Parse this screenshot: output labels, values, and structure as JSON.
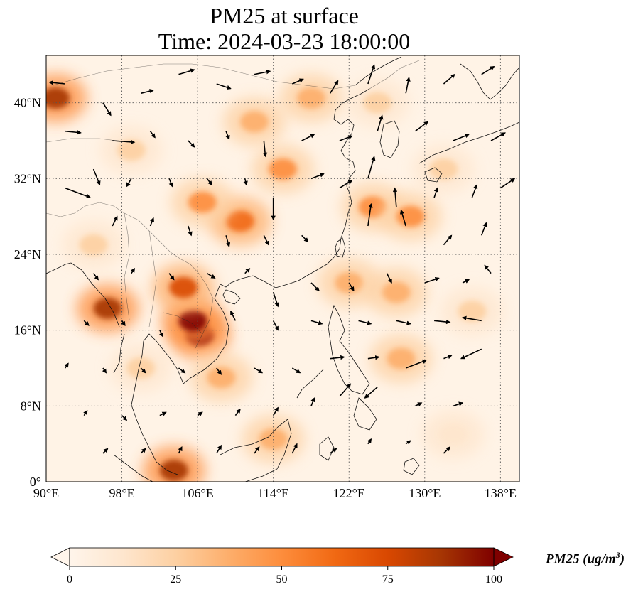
{
  "title": {
    "line1": "PM25 at surface",
    "line2": "Time: 2024-03-23 18:00:00"
  },
  "map": {
    "lon_range": [
      90,
      140
    ],
    "lat_range": [
      0,
      45
    ],
    "lon_ticks": [
      {
        "value": 90,
        "label": "90°E"
      },
      {
        "value": 98,
        "label": "98°E"
      },
      {
        "value": 106,
        "label": "106°E"
      },
      {
        "value": 114,
        "label": "114°E"
      },
      {
        "value": 122,
        "label": "122°E"
      },
      {
        "value": 130,
        "label": "130°E"
      },
      {
        "value": 138,
        "label": "138°E"
      }
    ],
    "lat_ticks": [
      {
        "value": 0,
        "label": "0°"
      },
      {
        "value": 8,
        "label": "8°N"
      },
      {
        "value": 16,
        "label": "16°N"
      },
      {
        "value": 24,
        "label": "24°N"
      },
      {
        "value": 32,
        "label": "32°N"
      },
      {
        "value": 40,
        "label": "40°N"
      }
    ],
    "gridlines": true,
    "variable": "PM25",
    "hotspots": [
      {
        "lon": 106.2,
        "lat": 15.5,
        "value": 100
      },
      {
        "lon": 105.5,
        "lat": 17.0,
        "value": 95
      },
      {
        "lon": 104.5,
        "lat": 20.5,
        "value": 70
      },
      {
        "lon": 96.5,
        "lat": 18.3,
        "value": 85
      },
      {
        "lon": 91.0,
        "lat": 40.5,
        "value": 90
      },
      {
        "lon": 103.5,
        "lat": 1.2,
        "value": 85
      },
      {
        "lon": 110.5,
        "lat": 27.5,
        "value": 60
      },
      {
        "lon": 106.5,
        "lat": 29.5,
        "value": 55
      },
      {
        "lon": 124.5,
        "lat": 29.0,
        "value": 55
      },
      {
        "lon": 128.5,
        "lat": 28.0,
        "value": 45
      },
      {
        "lon": 122.0,
        "lat": 21.0,
        "value": 40
      },
      {
        "lon": 127.0,
        "lat": 20.0,
        "value": 35
      },
      {
        "lon": 115.0,
        "lat": 33.0,
        "value": 45
      },
      {
        "lon": 112.0,
        "lat": 38.0,
        "value": 35
      },
      {
        "lon": 118.0,
        "lat": 40.5,
        "value": 35
      },
      {
        "lon": 99.0,
        "lat": 35.0,
        "value": 25
      },
      {
        "lon": 95.0,
        "lat": 25.0,
        "value": 30
      },
      {
        "lon": 114.0,
        "lat": 4.5,
        "value": 35
      },
      {
        "lon": 127.5,
        "lat": 13.0,
        "value": 40
      },
      {
        "lon": 135.0,
        "lat": 18.0,
        "value": 25
      },
      {
        "lon": 132.0,
        "lat": 33.0,
        "value": 25
      },
      {
        "lon": 100.0,
        "lat": 12.0,
        "value": 25
      },
      {
        "lon": 108.5,
        "lat": 11.0,
        "value": 40
      },
      {
        "lon": 125.0,
        "lat": 40.0,
        "value": 30
      },
      {
        "lon": 133.0,
        "lat": 5.0,
        "value": 15
      }
    ],
    "wind_vectors": [
      {
        "lon": 92,
        "lat": 42,
        "u": -1.0,
        "v": 0.1
      },
      {
        "lon": 96,
        "lat": 40,
        "u": 0.5,
        "v": -0.8
      },
      {
        "lon": 100,
        "lat": 41,
        "u": 0.8,
        "v": 0.2
      },
      {
        "lon": 104,
        "lat": 43,
        "u": 1.0,
        "v": 0.3
      },
      {
        "lon": 108,
        "lat": 42,
        "u": 0.9,
        "v": -0.3
      },
      {
        "lon": 112,
        "lat": 43,
        "u": 1.0,
        "v": 0.2
      },
      {
        "lon": 116,
        "lat": 42,
        "u": 0.7,
        "v": 0.3
      },
      {
        "lon": 120,
        "lat": 41,
        "u": 0.5,
        "v": 0.8
      },
      {
        "lon": 124,
        "lat": 42,
        "u": 0.4,
        "v": 1.2
      },
      {
        "lon": 128,
        "lat": 41,
        "u": 0.2,
        "v": 1.0
      },
      {
        "lon": 132,
        "lat": 42,
        "u": 0.7,
        "v": 0.6
      },
      {
        "lon": 136,
        "lat": 43,
        "u": 0.8,
        "v": 0.5
      },
      {
        "lon": 92,
        "lat": 37,
        "u": 1.0,
        "v": -0.1
      },
      {
        "lon": 97,
        "lat": 36,
        "u": 1.4,
        "v": -0.1
      },
      {
        "lon": 101,
        "lat": 37,
        "u": 0.3,
        "v": -0.4
      },
      {
        "lon": 105,
        "lat": 36,
        "u": 0.4,
        "v": -0.4
      },
      {
        "lon": 109,
        "lat": 37,
        "u": 0.2,
        "v": -0.5
      },
      {
        "lon": 113,
        "lat": 36,
        "u": 0.1,
        "v": -1.0
      },
      {
        "lon": 117,
        "lat": 36,
        "u": 0.8,
        "v": 0.4
      },
      {
        "lon": 121,
        "lat": 36,
        "u": 0.8,
        "v": 0.3
      },
      {
        "lon": 125,
        "lat": 37,
        "u": 0.3,
        "v": 1.0
      },
      {
        "lon": 129,
        "lat": 37,
        "u": 0.8,
        "v": 0.6
      },
      {
        "lon": 133,
        "lat": 36,
        "u": 1.0,
        "v": 0.4
      },
      {
        "lon": 137,
        "lat": 36,
        "u": 0.9,
        "v": 0.5
      },
      {
        "lon": 92,
        "lat": 31,
        "u": 1.6,
        "v": -0.6
      },
      {
        "lon": 95,
        "lat": 33,
        "u": 0.4,
        "v": -1.0
      },
      {
        "lon": 99,
        "lat": 32,
        "u": -0.3,
        "v": -0.5
      },
      {
        "lon": 103,
        "lat": 32,
        "u": 0.2,
        "v": -0.5
      },
      {
        "lon": 107,
        "lat": 32,
        "u": 0.3,
        "v": -0.4
      },
      {
        "lon": 111,
        "lat": 32,
        "u": 0.1,
        "v": -0.4
      },
      {
        "lon": 114,
        "lat": 30,
        "u": 0.0,
        "v": -1.4
      },
      {
        "lon": 118,
        "lat": 32,
        "u": 0.8,
        "v": 0.3
      },
      {
        "lon": 121,
        "lat": 31,
        "u": 0.8,
        "v": 0.5
      },
      {
        "lon": 124,
        "lat": 32,
        "u": 0.4,
        "v": 1.4
      },
      {
        "lon": 127,
        "lat": 29,
        "u": -0.1,
        "v": 1.2
      },
      {
        "lon": 131,
        "lat": 30,
        "u": 0.2,
        "v": 0.6
      },
      {
        "lon": 135,
        "lat": 30,
        "u": 0.3,
        "v": 0.8
      },
      {
        "lon": 138,
        "lat": 31,
        "u": 0.9,
        "v": 0.6
      },
      {
        "lon": 97,
        "lat": 27,
        "u": 0.3,
        "v": 0.6
      },
      {
        "lon": 101,
        "lat": 27,
        "u": 0.2,
        "v": 0.5
      },
      {
        "lon": 105,
        "lat": 27,
        "u": 0.2,
        "v": -0.6
      },
      {
        "lon": 109,
        "lat": 26,
        "u": 0.2,
        "v": -0.7
      },
      {
        "lon": 113,
        "lat": 26,
        "u": 0.3,
        "v": -0.6
      },
      {
        "lon": 117,
        "lat": 26,
        "u": 0.4,
        "v": -0.4
      },
      {
        "lon": 124,
        "lat": 27,
        "u": 0.2,
        "v": 1.4
      },
      {
        "lon": 128,
        "lat": 27,
        "u": -0.3,
        "v": 1.0
      },
      {
        "lon": 132,
        "lat": 25,
        "u": 0.5,
        "v": 0.6
      },
      {
        "lon": 136,
        "lat": 26,
        "u": 0.3,
        "v": 0.8
      },
      {
        "lon": 95,
        "lat": 22,
        "u": 0.3,
        "v": -0.4
      },
      {
        "lon": 99,
        "lat": 22,
        "u": 0.2,
        "v": 0.3
      },
      {
        "lon": 103,
        "lat": 22,
        "u": 0.3,
        "v": -0.4
      },
      {
        "lon": 107,
        "lat": 22,
        "u": 0.5,
        "v": -0.3
      },
      {
        "lon": 111,
        "lat": 22,
        "u": 0.3,
        "v": 0.3
      },
      {
        "lon": 114,
        "lat": 20,
        "u": 0.3,
        "v": -0.9
      },
      {
        "lon": 118,
        "lat": 21,
        "u": 0.5,
        "v": -0.5
      },
      {
        "lon": 122,
        "lat": 21,
        "u": 0.3,
        "v": -0.5
      },
      {
        "lon": 126,
        "lat": 22,
        "u": 0.3,
        "v": -0.6
      },
      {
        "lon": 130,
        "lat": 21,
        "u": 0.9,
        "v": 0.3
      },
      {
        "lon": 134,
        "lat": 21,
        "u": 0.4,
        "v": 0.2
      },
      {
        "lon": 137,
        "lat": 22,
        "u": -0.4,
        "v": 0.5
      },
      {
        "lon": 94,
        "lat": 17,
        "u": 0.3,
        "v": -0.3
      },
      {
        "lon": 98,
        "lat": 17,
        "u": 0.2,
        "v": -0.3
      },
      {
        "lon": 102,
        "lat": 16,
        "u": 0.2,
        "v": -0.4
      },
      {
        "lon": 110,
        "lat": 17,
        "u": -0.3,
        "v": 0.6
      },
      {
        "lon": 114,
        "lat": 17,
        "u": 0.3,
        "v": -0.6
      },
      {
        "lon": 118,
        "lat": 17,
        "u": 0.7,
        "v": -0.2
      },
      {
        "lon": 123,
        "lat": 17,
        "u": 0.8,
        "v": -0.2
      },
      {
        "lon": 127,
        "lat": 17,
        "u": 0.9,
        "v": -0.2
      },
      {
        "lon": 131,
        "lat": 17,
        "u": 1.0,
        "v": -0.1
      },
      {
        "lon": 136,
        "lat": 17,
        "u": -1.2,
        "v": 0.2
      },
      {
        "lon": 92,
        "lat": 12,
        "u": 0.2,
        "v": 0.3
      },
      {
        "lon": 96,
        "lat": 12,
        "u": 0.2,
        "v": -0.3
      },
      {
        "lon": 100,
        "lat": 12,
        "u": 0.3,
        "v": -0.3
      },
      {
        "lon": 104,
        "lat": 12,
        "u": 0.4,
        "v": -0.3
      },
      {
        "lon": 108,
        "lat": 12,
        "u": 0.3,
        "v": -0.4
      },
      {
        "lon": 112,
        "lat": 12,
        "u": 0.5,
        "v": -0.3
      },
      {
        "lon": 116,
        "lat": 12,
        "u": 0.5,
        "v": -0.3
      },
      {
        "lon": 120,
        "lat": 13,
        "u": 0.9,
        "v": 0.1
      },
      {
        "lon": 124,
        "lat": 13,
        "u": 0.7,
        "v": 0.1
      },
      {
        "lon": 128,
        "lat": 12,
        "u": 1.3,
        "v": 0.5
      },
      {
        "lon": 132,
        "lat": 13,
        "u": 0.5,
        "v": 0.2
      },
      {
        "lon": 136,
        "lat": 14,
        "u": -1.3,
        "v": -0.6
      },
      {
        "lon": 94,
        "lat": 7,
        "u": 0.2,
        "v": 0.3
      },
      {
        "lon": 98,
        "lat": 7,
        "u": 0.3,
        "v": -0.3
      },
      {
        "lon": 102,
        "lat": 7,
        "u": 0.4,
        "v": 0.2
      },
      {
        "lon": 106,
        "lat": 7,
        "u": 0.3,
        "v": 0.2
      },
      {
        "lon": 110,
        "lat": 7,
        "u": 0.3,
        "v": 0.4
      },
      {
        "lon": 114,
        "lat": 7,
        "u": 0.3,
        "v": 0.5
      },
      {
        "lon": 118,
        "lat": 8,
        "u": 0.2,
        "v": 0.5
      },
      {
        "lon": 121,
        "lat": 9,
        "u": 0.7,
        "v": 0.8
      },
      {
        "lon": 125,
        "lat": 10,
        "u": -0.8,
        "v": -0.7
      },
      {
        "lon": 129,
        "lat": 8,
        "u": 0.4,
        "v": 0.2
      },
      {
        "lon": 133,
        "lat": 8,
        "u": 0.6,
        "v": 0.2
      },
      {
        "lon": 96,
        "lat": 3,
        "u": 0.3,
        "v": 0.3
      },
      {
        "lon": 100,
        "lat": 3,
        "u": 0.3,
        "v": 0.3
      },
      {
        "lon": 104,
        "lat": 3,
        "u": 0.2,
        "v": 0.4
      },
      {
        "lon": 108,
        "lat": 3,
        "u": 0.3,
        "v": 0.5
      },
      {
        "lon": 112,
        "lat": 3,
        "u": 0.3,
        "v": 0.4
      },
      {
        "lon": 116,
        "lat": 3,
        "u": 0.3,
        "v": 0.6
      },
      {
        "lon": 120,
        "lat": 3,
        "u": 0.4,
        "v": 0.3
      },
      {
        "lon": 124,
        "lat": 4,
        "u": 0.2,
        "v": 0.3
      },
      {
        "lon": 128,
        "lat": 4,
        "u": 0.3,
        "v": 0.2
      },
      {
        "lon": 132,
        "lat": 3,
        "u": 0.4,
        "v": 0.4
      }
    ]
  },
  "colorbar": {
    "label": "PM25 (ug/m",
    "label_sup": "3",
    "label_close": ")",
    "min": 0,
    "max": 100,
    "extend": "both",
    "ticks": [
      {
        "value": 0,
        "label": "0"
      },
      {
        "value": 25,
        "label": "25"
      },
      {
        "value": 50,
        "label": "50"
      },
      {
        "value": 75,
        "label": "75"
      },
      {
        "value": 100,
        "label": "100"
      }
    ],
    "colors": [
      "#fff5eb",
      "#fee6ce",
      "#fdd0a2",
      "#fdae6b",
      "#fd8d3c",
      "#f16913",
      "#d94801",
      "#a63603",
      "#7f0000"
    ]
  }
}
